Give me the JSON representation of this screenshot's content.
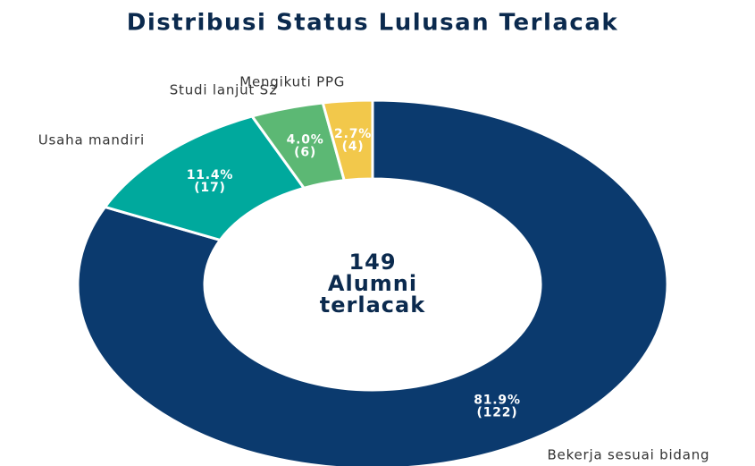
{
  "chart_data": {
    "type": "donut",
    "title": "Distribusi Status Lulusan Terlacak",
    "categories": [
      "Bekerja sesuai bidang",
      "Usaha mandiri",
      "Studi lanjut S2",
      "Mengikuti PPG"
    ],
    "values": [
      81.9,
      11.4,
      4.0,
      2.7
    ],
    "value_labels": [
      "81.9%",
      "11.4%",
      "4.0%",
      "2.7%"
    ],
    "counts": [
      122,
      17,
      6,
      4
    ],
    "count_labels": [
      "(122)",
      "(17)",
      "(6)",
      "(4)"
    ],
    "colors": [
      "#0b3a6e",
      "#00a99d",
      "#5cb874",
      "#f2c84b"
    ],
    "center_value": 149,
    "center_label": [
      "Alumni",
      "terlacak"
    ]
  }
}
